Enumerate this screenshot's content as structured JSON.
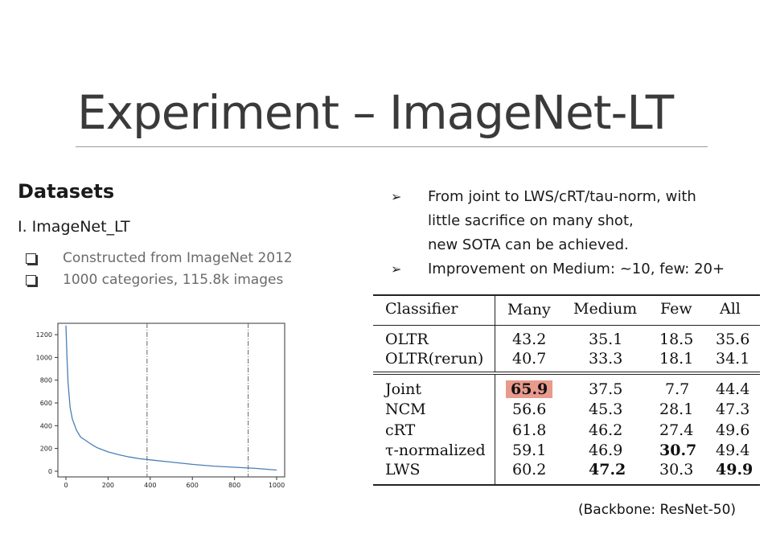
{
  "slide": {
    "title": "Experiment – ImageNet-LT",
    "datasets_heading": "Datasets",
    "dataset_name": "I.  ImageNet_LT",
    "dataset_bullets": [
      "Constructed from ImageNet 2012",
      "1000 categories, 115.8k images"
    ],
    "points": [
      {
        "lines": [
          "From joint to LWS/cRT/tau-norm,  with",
          "little sacrifice on many shot,",
          "new SOTA can be achieved."
        ]
      },
      {
        "lines": [
          "Improvement on Medium: ~10, few: 20+"
        ]
      }
    ],
    "backbone_note": "(Backbone: ResNet-50)"
  },
  "table": {
    "headers": [
      "Classifier",
      "Many",
      "Medium",
      "Few",
      "All"
    ],
    "group1": [
      {
        "name": "OLTR",
        "vals": [
          "43.2",
          "35.1",
          "18.5",
          "35.6"
        ]
      },
      {
        "name": "OLTR(rerun)",
        "vals": [
          "40.7",
          "33.3",
          "18.1",
          "34.1"
        ]
      }
    ],
    "group2": [
      {
        "name": "Joint",
        "vals": [
          "65.9",
          "37.5",
          "7.7",
          "44.4"
        ]
      },
      {
        "name": "NCM",
        "vals": [
          "56.6",
          "45.3",
          "28.1",
          "47.3"
        ]
      },
      {
        "name": "cRT",
        "vals": [
          "61.8",
          "46.2",
          "27.4",
          "49.6"
        ]
      },
      {
        "name": "τ-normalized",
        "vals": [
          "59.1",
          "46.9",
          "30.7",
          "49.4"
        ]
      },
      {
        "name": "LWS",
        "vals": [
          "60.2",
          "47.2",
          "30.3",
          "49.9"
        ]
      }
    ],
    "highlight_color": "#e89a8c"
  },
  "chart_data": {
    "type": "line",
    "xlim": [
      0,
      1000
    ],
    "ylim": [
      -50,
      1300
    ],
    "xticks": [
      0,
      200,
      400,
      600,
      800,
      1000
    ],
    "yticks": [
      0,
      200,
      400,
      600,
      800,
      1000,
      1200
    ],
    "vlines": [
      385,
      865
    ],
    "series": [
      {
        "color": "#4a7fb5",
        "x": [
          0,
          5,
          10,
          20,
          30,
          50,
          70,
          90,
          110,
          130,
          150,
          200,
          250,
          300,
          350,
          400,
          500,
          600,
          700,
          800,
          900,
          1000
        ],
        "y": [
          1280,
          1000,
          780,
          560,
          460,
          360,
          300,
          275,
          250,
          225,
          205,
          170,
          145,
          125,
          110,
          100,
          80,
          60,
          45,
          35,
          25,
          10
        ]
      }
    ],
    "grid": false
  }
}
